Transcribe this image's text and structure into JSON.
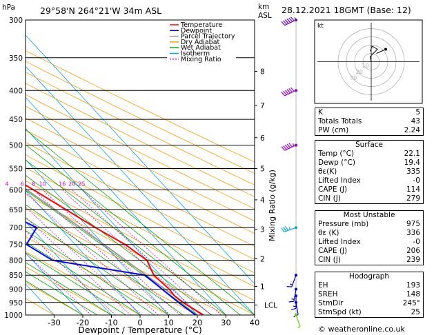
{
  "header": {
    "hpa_label": "hPa",
    "location": "29°58'N  264°21'W  34m  ASL",
    "km_label": "km",
    "asl_label": "ASL",
    "datetime": "28.12.2021  18GMT  (Base: 12)"
  },
  "chart_data": {
    "type": "skew-t log-p",
    "xlabel": "Dewpoint / Temperature (°C)",
    "ylabel_right": "Mixing Ratio (g/kg)",
    "x_ticks": [
      -30,
      -20,
      -10,
      0,
      10,
      20,
      30,
      40
    ],
    "pressure_levels": [
      300,
      350,
      400,
      450,
      500,
      550,
      600,
      650,
      700,
      750,
      800,
      850,
      900,
      950,
      1000
    ],
    "xlim": [
      -40,
      40
    ],
    "ylim_hpa": [
      1000,
      300
    ],
    "km_ticks": [
      {
        "km": "1",
        "p": 890
      },
      {
        "km": "2",
        "p": 795
      },
      {
        "km": "3",
        "p": 705
      },
      {
        "km": "4",
        "p": 625
      },
      {
        "km": "5",
        "p": 550
      },
      {
        "km": "6",
        "p": 485
      },
      {
        "km": "7",
        "p": 425
      },
      {
        "km": "8",
        "p": 370
      }
    ],
    "lcl_label": "LCL",
    "lcl_p": 960,
    "mixing_ratio_labels": [
      "1",
      "2",
      "3",
      "4",
      "6",
      "8",
      "10",
      "16",
      "20",
      "25"
    ],
    "mixing_ratio_values": [
      1,
      2,
      3,
      4,
      6,
      8,
      10,
      16,
      20,
      25
    ],
    "legend": [
      {
        "name": "Temperature",
        "color": "#ff0000",
        "dash": ""
      },
      {
        "name": "Dewpoint",
        "color": "#0000ff",
        "dash": ""
      },
      {
        "name": "Parcel Trajectory",
        "color": "#999999",
        "dash": ""
      },
      {
        "name": "Dry Adiabat",
        "color": "#ff9900",
        "dash": ""
      },
      {
        "name": "Wet Adiabat",
        "color": "#00aa00",
        "dash": ""
      },
      {
        "name": "Isotherm",
        "color": "#00a0ff",
        "dash": ""
      },
      {
        "name": "Mixing Ratio",
        "color": "#cc00cc",
        "dash": "2,2"
      }
    ],
    "temperature": [
      {
        "p": 1000,
        "t": 22.1
      },
      {
        "p": 975,
        "t": 20.5
      },
      {
        "p": 950,
        "t": 19.0
      },
      {
        "p": 925,
        "t": 18.2
      },
      {
        "p": 900,
        "t": 18.5
      },
      {
        "p": 850,
        "t": 17.6
      },
      {
        "p": 800,
        "t": 20.0
      },
      {
        "p": 750,
        "t": 17.5
      },
      {
        "p": 700,
        "t": 12.5
      },
      {
        "p": 650,
        "t": 8.0
      },
      {
        "p": 600,
        "t": 3.0
      },
      {
        "p": 550,
        "t": -2.5
      },
      {
        "p": 500,
        "t": -7.5
      },
      {
        "p": 450,
        "t": -13.5
      },
      {
        "p": 400,
        "t": -20.5
      },
      {
        "p": 350,
        "t": -29.0
      },
      {
        "p": 300,
        "t": -39.0
      }
    ],
    "dewpoint": [
      {
        "p": 1000,
        "t": 19.4
      },
      {
        "p": 950,
        "t": 17.5
      },
      {
        "p": 900,
        "t": 16.0
      },
      {
        "p": 850,
        "t": 14.5
      },
      {
        "p": 800,
        "t": -13.0
      },
      {
        "p": 750,
        "t": -17.0
      },
      {
        "p": 700,
        "t": -8.0
      },
      {
        "p": 650,
        "t": -15.0
      },
      {
        "p": 600,
        "t": -24.0
      },
      {
        "p": 550,
        "t": -27.0
      },
      {
        "p": 500,
        "t": -37.0
      },
      {
        "p": 450,
        "t": -47.0
      },
      {
        "p": 400,
        "t": -50.0
      },
      {
        "p": 350,
        "t": -49.0
      },
      {
        "p": 300,
        "t": -58.0
      }
    ],
    "parcel": [
      {
        "p": 1000,
        "t": 22.1
      },
      {
        "p": 960,
        "t": 19.8
      },
      {
        "p": 900,
        "t": 17.0
      },
      {
        "p": 850,
        "t": 14.9
      },
      {
        "p": 800,
        "t": 12.6
      },
      {
        "p": 750,
        "t": 10.1
      },
      {
        "p": 700,
        "t": 7.3
      },
      {
        "p": 650,
        "t": 4.2
      },
      {
        "p": 600,
        "t": 0.7
      },
      {
        "p": 550,
        "t": -3.3
      },
      {
        "p": 500,
        "t": -8.0
      },
      {
        "p": 450,
        "t": -13.6
      },
      {
        "p": 400,
        "t": -20.3
      },
      {
        "p": 350,
        "t": -28.4
      },
      {
        "p": 300,
        "t": -38.5
      }
    ],
    "wind_barbs": [
      {
        "p": 300,
        "color": "#6600cc",
        "dir": 245,
        "spd": 65
      },
      {
        "p": 400,
        "color": "#9900cc",
        "dir": 245,
        "spd": 60
      },
      {
        "p": 500,
        "color": "#9900cc",
        "dir": 245,
        "spd": 55
      },
      {
        "p": 700,
        "color": "#00aacc",
        "dir": 250,
        "spd": 35
      },
      {
        "p": 850,
        "color": "#0000cc",
        "dir": 200,
        "spd": 15
      },
      {
        "p": 900,
        "color": "#0000cc",
        "dir": 190,
        "spd": 15
      },
      {
        "p": 925,
        "color": "#0000cc",
        "dir": 180,
        "spd": 15
      },
      {
        "p": 950,
        "color": "#0000cc",
        "dir": 170,
        "spd": 10
      },
      {
        "p": 1000,
        "color": "#66cc00",
        "dir": 160,
        "spd": 5
      }
    ],
    "hodograph": {
      "label": "kt",
      "ring_labels": [
        "10",
        "20",
        "30"
      ],
      "trace": [
        [
          0,
          0
        ],
        [
          -1,
          5
        ],
        [
          3,
          9
        ],
        [
          6,
          12
        ],
        [
          1,
          15
        ],
        [
          -1,
          10
        ]
      ],
      "storm": [
        [
          5,
          8
        ],
        [
          14,
          12
        ]
      ]
    }
  },
  "indices": [
    {
      "label": "K",
      "value": "5"
    },
    {
      "label": "Totals Totals",
      "value": "43"
    },
    {
      "label": "PW (cm)",
      "value": "2.24"
    }
  ],
  "surface": {
    "title": "Surface",
    "rows": [
      {
        "label": "Temp (°C)",
        "value": "22.1"
      },
      {
        "label": "Dewp (°C)",
        "value": "19.4"
      },
      {
        "label": "θε(K)",
        "value": "335"
      },
      {
        "label": "Lifted Index",
        "value": "-0"
      },
      {
        "label": "CAPE (J)",
        "value": "114"
      },
      {
        "label": "CIN (J)",
        "value": "279"
      }
    ]
  },
  "most_unstable": {
    "title": "Most Unstable",
    "rows": [
      {
        "label": "Pressure (mb)",
        "value": "975"
      },
      {
        "label": "θε (K)",
        "value": "336"
      },
      {
        "label": "Lifted Index",
        "value": "-0"
      },
      {
        "label": "CAPE (J)",
        "value": "206"
      },
      {
        "label": "CIN (J)",
        "value": "239"
      }
    ]
  },
  "hodograph_panel": {
    "title": "Hodograph",
    "rows": [
      {
        "label": "EH",
        "value": "193"
      },
      {
        "label": "SREH",
        "value": "148"
      },
      {
        "label": "StmDir",
        "value": "245°"
      },
      {
        "label": "StmSpd (kt)",
        "value": "25"
      }
    ]
  },
  "footer": "© weatheronline.co.uk"
}
